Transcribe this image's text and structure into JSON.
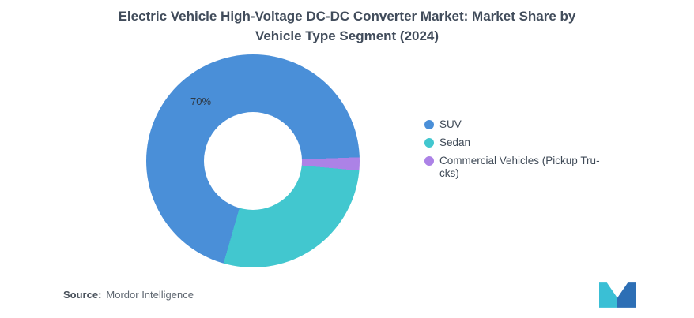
{
  "title": {
    "line1": "Electric Vehicle High-Voltage DC-DC Converter Market: Market Share by",
    "line2": "Vehicle Type Segment (2024)"
  },
  "chart_data": {
    "type": "pie",
    "subtype": "donut",
    "title": "Electric Vehicle High-Voltage DC-DC Converter Market: Market Share by Vehicle Type Segment (2024)",
    "unit": "%",
    "series": [
      {
        "name": "SUV",
        "value": 70,
        "color": "#4A8FD8",
        "data_label": "70%"
      },
      {
        "name": "Sedan",
        "value": 28,
        "color": "#42C7CF",
        "data_label": ""
      },
      {
        "name": "Commercial Vehicles (Pickup Trucks)",
        "value": 2,
        "color": "#AC82E6",
        "data_label": ""
      }
    ],
    "start_angle_deg": 88,
    "direction": "counterclockwise",
    "donut_hole_ratio": 0.46,
    "legend_position": "right",
    "grid": false
  },
  "labels": {
    "suv_share": "70%"
  },
  "legend": {
    "items": [
      {
        "label": "SUV"
      },
      {
        "label": "Sedan"
      },
      {
        "label": "Commercial Vehicles (Pickup Tru-\ncks)"
      }
    ]
  },
  "source": {
    "prefix": "Source:",
    "name": "Mordor Intelligence"
  },
  "logo": {
    "name": "Mordor Intelligence logo",
    "teal": "#3ABFD5",
    "blue": "#2D6FB5"
  }
}
